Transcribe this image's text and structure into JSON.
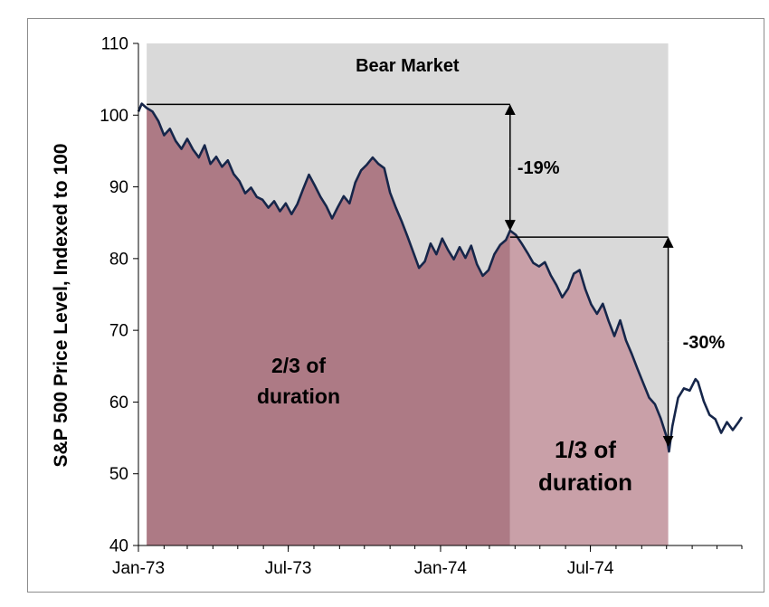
{
  "chart_data": {
    "type": "line",
    "title": "",
    "xlabel": "",
    "ylabel": "S&P 500 Price Level, Indexed to 100",
    "xlim": [
      "1973-01-01",
      "1974-12-31"
    ],
    "ylim": [
      40,
      110
    ],
    "yticks": [
      40,
      50,
      60,
      70,
      80,
      90,
      100,
      110
    ],
    "xticks": [
      {
        "date": "1973-01-01",
        "label": "Jan-73"
      },
      {
        "date": "1973-07-01",
        "label": "Jul-73"
      },
      {
        "date": "1974-01-01",
        "label": "Jan-74"
      },
      {
        "date": "1974-07-01",
        "label": "Jul-74"
      }
    ],
    "grid": false,
    "series": [
      {
        "name": "",
        "color": "#16264a",
        "points": [
          [
            "1973-01-01",
            100.5
          ],
          [
            "1973-01-05",
            101.6
          ],
          [
            "1973-01-11",
            101.0
          ],
          [
            "1973-01-18",
            100.5
          ],
          [
            "1973-01-25",
            99.2
          ],
          [
            "1973-02-01",
            97.2
          ],
          [
            "1973-02-08",
            98.1
          ],
          [
            "1973-02-15",
            96.4
          ],
          [
            "1973-02-22",
            95.3
          ],
          [
            "1973-03-01",
            96.7
          ],
          [
            "1973-03-08",
            95.2
          ],
          [
            "1973-03-15",
            94.1
          ],
          [
            "1973-03-22",
            95.8
          ],
          [
            "1973-03-29",
            93.2
          ],
          [
            "1973-04-05",
            94.2
          ],
          [
            "1973-04-12",
            92.8
          ],
          [
            "1973-04-19",
            93.7
          ],
          [
            "1973-04-26",
            91.8
          ],
          [
            "1973-05-03",
            90.8
          ],
          [
            "1973-05-10",
            89.1
          ],
          [
            "1973-05-17",
            89.9
          ],
          [
            "1973-05-24",
            88.6
          ],
          [
            "1973-05-31",
            88.2
          ],
          [
            "1973-06-07",
            87.1
          ],
          [
            "1973-06-14",
            88.0
          ],
          [
            "1973-06-21",
            86.6
          ],
          [
            "1973-06-28",
            87.7
          ],
          [
            "1973-07-05",
            86.2
          ],
          [
            "1973-07-12",
            87.6
          ],
          [
            "1973-07-19",
            89.7
          ],
          [
            "1973-07-26",
            91.7
          ],
          [
            "1973-08-02",
            90.2
          ],
          [
            "1973-08-09",
            88.6
          ],
          [
            "1973-08-16",
            87.3
          ],
          [
            "1973-08-23",
            85.6
          ],
          [
            "1973-08-30",
            87.2
          ],
          [
            "1973-09-06",
            88.7
          ],
          [
            "1973-09-13",
            87.7
          ],
          [
            "1973-09-20",
            90.6
          ],
          [
            "1973-09-27",
            92.3
          ],
          [
            "1973-10-04",
            93.1
          ],
          [
            "1973-10-11",
            94.1
          ],
          [
            "1973-10-18",
            93.2
          ],
          [
            "1973-10-25",
            92.6
          ],
          [
            "1973-11-01",
            89.2
          ],
          [
            "1973-11-08",
            87.1
          ],
          [
            "1973-11-15",
            85.2
          ],
          [
            "1973-11-22",
            83.1
          ],
          [
            "1973-11-29",
            80.9
          ],
          [
            "1973-12-06",
            78.7
          ],
          [
            "1973-12-13",
            79.6
          ],
          [
            "1973-12-20",
            82.1
          ],
          [
            "1973-12-27",
            80.6
          ],
          [
            "1974-01-03",
            82.8
          ],
          [
            "1974-01-10",
            81.2
          ],
          [
            "1974-01-17",
            79.9
          ],
          [
            "1974-01-24",
            81.6
          ],
          [
            "1974-01-31",
            80.1
          ],
          [
            "1974-02-07",
            81.8
          ],
          [
            "1974-02-14",
            79.2
          ],
          [
            "1974-02-21",
            77.6
          ],
          [
            "1974-02-28",
            78.4
          ],
          [
            "1974-03-07",
            80.6
          ],
          [
            "1974-03-14",
            81.9
          ],
          [
            "1974-03-21",
            82.6
          ],
          [
            "1974-03-26",
            83.9
          ],
          [
            "1974-04-02",
            83.3
          ],
          [
            "1974-04-09",
            82.1
          ],
          [
            "1974-04-16",
            80.8
          ],
          [
            "1974-04-23",
            79.4
          ],
          [
            "1974-04-30",
            78.9
          ],
          [
            "1974-05-07",
            79.5
          ],
          [
            "1974-05-14",
            77.7
          ],
          [
            "1974-05-21",
            76.3
          ],
          [
            "1974-05-28",
            74.6
          ],
          [
            "1974-06-04",
            75.8
          ],
          [
            "1974-06-11",
            77.9
          ],
          [
            "1974-06-18",
            78.4
          ],
          [
            "1974-06-25",
            75.7
          ],
          [
            "1974-07-02",
            73.6
          ],
          [
            "1974-07-09",
            72.3
          ],
          [
            "1974-07-16",
            73.7
          ],
          [
            "1974-07-23",
            71.3
          ],
          [
            "1974-07-30",
            69.2
          ],
          [
            "1974-08-06",
            71.4
          ],
          [
            "1974-08-13",
            68.6
          ],
          [
            "1974-08-20",
            66.7
          ],
          [
            "1974-08-27",
            64.6
          ],
          [
            "1974-09-03",
            62.6
          ],
          [
            "1974-09-10",
            60.6
          ],
          [
            "1974-09-17",
            59.7
          ],
          [
            "1974-09-24",
            57.7
          ],
          [
            "1974-10-01",
            55.2
          ],
          [
            "1974-10-04",
            53.1
          ],
          [
            "1974-10-08",
            56.6
          ],
          [
            "1974-10-15",
            60.6
          ],
          [
            "1974-10-22",
            61.9
          ],
          [
            "1974-10-29",
            61.6
          ],
          [
            "1974-11-05",
            63.2
          ],
          [
            "1974-11-08",
            62.8
          ],
          [
            "1974-11-15",
            60.1
          ],
          [
            "1974-11-22",
            58.2
          ],
          [
            "1974-11-29",
            57.6
          ],
          [
            "1974-12-06",
            55.7
          ],
          [
            "1974-12-13",
            57.2
          ],
          [
            "1974-12-20",
            56.1
          ],
          [
            "1974-12-27",
            57.2
          ],
          [
            "1974-12-31",
            57.9
          ]
        ]
      }
    ],
    "shaded_region": {
      "label": "Bear Market",
      "start": "1973-01-11",
      "end": "1974-10-03",
      "color": "#d9d9d9"
    },
    "fill_regions": [
      {
        "start": "1973-01-11",
        "end": "1974-03-26",
        "color": "#ad7a85",
        "label_lines": [
          "2/3 of",
          "duration"
        ]
      },
      {
        "start": "1974-03-26",
        "end": "1974-10-03",
        "color": "#c9a0a8",
        "label_lines": [
          "1/3 of",
          "duration"
        ]
      }
    ],
    "annotations": [
      {
        "text": "-19%",
        "from": {
          "date": "1974-03-26",
          "value": 101.5
        },
        "to": {
          "date": "1974-03-26",
          "value": 83.9
        }
      },
      {
        "text": "-30%",
        "from": {
          "date": "1974-10-03",
          "value": 83.0
        },
        "to": {
          "date": "1974-10-03",
          "value": 53.8
        }
      }
    ]
  }
}
